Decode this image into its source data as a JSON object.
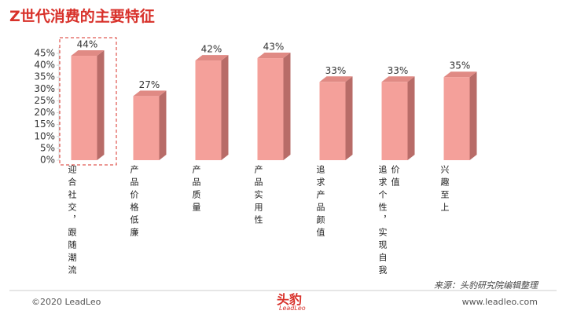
{
  "chart_data": {
    "type": "bar3d",
    "title": "Z世代消费的主要特征",
    "categories": [
      "迎合社交，跟随潮流",
      "产品价格低廉",
      "产品质量",
      "产品实用性",
      "追求产品颜值",
      "追求个性，实现自我价值",
      "兴趣至上"
    ],
    "values": [
      44,
      27,
      42,
      43,
      33,
      33,
      35
    ],
    "value_labels": [
      "44%",
      "27%",
      "42%",
      "43%",
      "33%",
      "33%",
      "35%"
    ],
    "color": "#f4a09a",
    "ylim": [
      0,
      45
    ],
    "yticks": [
      {
        "value": 0,
        "label": "0%"
      },
      {
        "value": 5,
        "label": "5%"
      },
      {
        "value": 10,
        "label": "10%"
      },
      {
        "value": 15,
        "label": "15%"
      },
      {
        "value": 20,
        "label": "20%"
      },
      {
        "value": 25,
        "label": "25%"
      },
      {
        "value": 30,
        "label": "30%"
      },
      {
        "value": 35,
        "label": "35%"
      },
      {
        "value": 40,
        "label": "40%"
      },
      {
        "value": 45,
        "label": "45%"
      }
    ],
    "grid": false,
    "source": "来源：头豹研究院编辑整理"
  },
  "footer": {
    "copyright": "©2020 LeadLeo",
    "logo": "头豹",
    "logo_sub": "LeadLeo",
    "website": "www.leadleo.com"
  }
}
